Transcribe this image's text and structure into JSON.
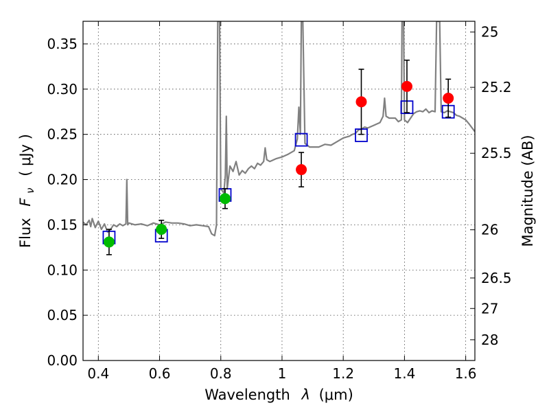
{
  "chart_data": {
    "type": "scatter",
    "xlabel_main": "Wavelength",
    "xlabel_symbol": "λ",
    "xlabel_unit": "(μm)",
    "ylabel_main": "Flux",
    "ylabel_symbol": "F",
    "ylabel_subscript": "ν",
    "ylabel_unit": "( μJy )",
    "y2label": "Magnitude (AB)",
    "xlim": [
      0.35,
      1.63
    ],
    "ylim": [
      0.0,
      0.375
    ],
    "x_ticks": [
      0.4,
      0.6,
      0.8,
      1.0,
      1.2,
      1.4,
      1.6
    ],
    "x_tick_labels": [
      "0.4",
      "0.6",
      "0.8",
      "1",
      "1.2",
      "1.4",
      "1.6"
    ],
    "y_ticks": [
      0.0,
      0.05,
      0.1,
      0.15,
      0.2,
      0.25,
      0.3,
      0.35
    ],
    "y_tick_labels": [
      "0.00",
      "0.05",
      "0.10",
      "0.15",
      "0.20",
      "0.25",
      "0.30",
      "0.35"
    ],
    "y2_ticks": [
      {
        "label": "25",
        "flux": 0.3631
      },
      {
        "label": "25.2",
        "flux": 0.302
      },
      {
        "label": "25.5",
        "flux": 0.2291
      },
      {
        "label": "26",
        "flux": 0.1445
      },
      {
        "label": "26.5",
        "flux": 0.0912
      },
      {
        "label": "27",
        "flux": 0.0575
      },
      {
        "label": "28",
        "flux": 0.0229
      }
    ],
    "grid": true,
    "colors": {
      "spectrum": "#808080",
      "optical_points": "#00bb00",
      "ir_points": "#ff0000",
      "model_squares": "#0000cc",
      "errorbar": "#000000"
    },
    "series": [
      {
        "kind": "measured-optical",
        "points": [
          {
            "x": 0.435,
            "y": 0.131,
            "yerr": 0.014
          },
          {
            "x": 0.606,
            "y": 0.145,
            "yerr": 0.01
          },
          {
            "x": 0.814,
            "y": 0.179,
            "yerr": 0.011
          }
        ]
      },
      {
        "kind": "measured-infrared",
        "points": [
          {
            "x": 1.063,
            "y": 0.211,
            "yerr": 0.019
          },
          {
            "x": 1.259,
            "y": 0.286,
            "yerr": 0.036
          },
          {
            "x": 1.408,
            "y": 0.303,
            "yerr": 0.029
          },
          {
            "x": 1.543,
            "y": 0.29,
            "yerr": 0.021
          }
        ]
      },
      {
        "kind": "model-photometry",
        "points": [
          {
            "x": 0.435,
            "y": 0.136
          },
          {
            "x": 0.606,
            "y": 0.138
          },
          {
            "x": 0.814,
            "y": 0.183
          },
          {
            "x": 1.063,
            "y": 0.244
          },
          {
            "x": 1.259,
            "y": 0.249
          },
          {
            "x": 1.408,
            "y": 0.28
          },
          {
            "x": 1.543,
            "y": 0.275
          }
        ]
      },
      {
        "kind": "model-spectrum",
        "points": [
          [
            0.35,
            0.153
          ],
          [
            0.36,
            0.15
          ],
          [
            0.37,
            0.155
          ],
          [
            0.375,
            0.148
          ],
          [
            0.38,
            0.157
          ],
          [
            0.39,
            0.147
          ],
          [
            0.4,
            0.154
          ],
          [
            0.41,
            0.145
          ],
          [
            0.42,
            0.151
          ],
          [
            0.43,
            0.142
          ],
          [
            0.44,
            0.145
          ],
          [
            0.45,
            0.15
          ],
          [
            0.46,
            0.148
          ],
          [
            0.47,
            0.151
          ],
          [
            0.48,
            0.149
          ],
          [
            0.49,
            0.151
          ],
          [
            0.493,
            0.2
          ],
          [
            0.496,
            0.15
          ],
          [
            0.5,
            0.152
          ],
          [
            0.52,
            0.15
          ],
          [
            0.54,
            0.151
          ],
          [
            0.56,
            0.149
          ],
          [
            0.58,
            0.152
          ],
          [
            0.6,
            0.15
          ],
          [
            0.62,
            0.153
          ],
          [
            0.64,
            0.152
          ],
          [
            0.66,
            0.152
          ],
          [
            0.68,
            0.151
          ],
          [
            0.7,
            0.149
          ],
          [
            0.72,
            0.15
          ],
          [
            0.74,
            0.149
          ],
          [
            0.76,
            0.148
          ],
          [
            0.77,
            0.14
          ],
          [
            0.78,
            0.138
          ],
          [
            0.786,
            0.15
          ],
          [
            0.79,
            0.375
          ],
          [
            0.796,
            0.375
          ],
          [
            0.8,
            0.19
          ],
          [
            0.81,
            0.185
          ],
          [
            0.815,
            0.205
          ],
          [
            0.818,
            0.27
          ],
          [
            0.821,
            0.19
          ],
          [
            0.83,
            0.215
          ],
          [
            0.84,
            0.209
          ],
          [
            0.85,
            0.22
          ],
          [
            0.86,
            0.205
          ],
          [
            0.87,
            0.21
          ],
          [
            0.88,
            0.207
          ],
          [
            0.89,
            0.212
          ],
          [
            0.9,
            0.215
          ],
          [
            0.91,
            0.212
          ],
          [
            0.92,
            0.218
          ],
          [
            0.93,
            0.216
          ],
          [
            0.94,
            0.22
          ],
          [
            0.945,
            0.235
          ],
          [
            0.95,
            0.222
          ],
          [
            0.96,
            0.22
          ],
          [
            0.98,
            0.223
          ],
          [
            1.0,
            0.225
          ],
          [
            1.02,
            0.228
          ],
          [
            1.04,
            0.232
          ],
          [
            1.05,
            0.245
          ],
          [
            1.055,
            0.28
          ],
          [
            1.06,
            0.25
          ],
          [
            1.063,
            0.375
          ],
          [
            1.068,
            0.375
          ],
          [
            1.075,
            0.24
          ],
          [
            1.09,
            0.236
          ],
          [
            1.1,
            0.236
          ],
          [
            1.12,
            0.236
          ],
          [
            1.14,
            0.239
          ],
          [
            1.16,
            0.238
          ],
          [
            1.18,
            0.242
          ],
          [
            1.2,
            0.246
          ],
          [
            1.22,
            0.248
          ],
          [
            1.23,
            0.25
          ],
          [
            1.24,
            0.251
          ],
          [
            1.25,
            0.255
          ],
          [
            1.26,
            0.256
          ],
          [
            1.27,
            0.258
          ],
          [
            1.28,
            0.257
          ],
          [
            1.3,
            0.26
          ],
          [
            1.32,
            0.263
          ],
          [
            1.33,
            0.27
          ],
          [
            1.335,
            0.29
          ],
          [
            1.34,
            0.27
          ],
          [
            1.35,
            0.268
          ],
          [
            1.37,
            0.268
          ],
          [
            1.38,
            0.264
          ],
          [
            1.39,
            0.266
          ],
          [
            1.392,
            0.375
          ],
          [
            1.397,
            0.375
          ],
          [
            1.4,
            0.266
          ],
          [
            1.41,
            0.263
          ],
          [
            1.42,
            0.268
          ],
          [
            1.43,
            0.273
          ],
          [
            1.44,
            0.275
          ],
          [
            1.45,
            0.276
          ],
          [
            1.46,
            0.275
          ],
          [
            1.47,
            0.278
          ],
          [
            1.48,
            0.274
          ],
          [
            1.49,
            0.276
          ],
          [
            1.5,
            0.275
          ],
          [
            1.505,
            0.375
          ],
          [
            1.515,
            0.375
          ],
          [
            1.52,
            0.275
          ],
          [
            1.53,
            0.274
          ],
          [
            1.54,
            0.276
          ],
          [
            1.55,
            0.275
          ],
          [
            1.56,
            0.274
          ],
          [
            1.57,
            0.271
          ],
          [
            1.58,
            0.27
          ],
          [
            1.59,
            0.268
          ],
          [
            1.6,
            0.266
          ],
          [
            1.61,
            0.262
          ],
          [
            1.63,
            0.253
          ]
        ]
      }
    ]
  }
}
